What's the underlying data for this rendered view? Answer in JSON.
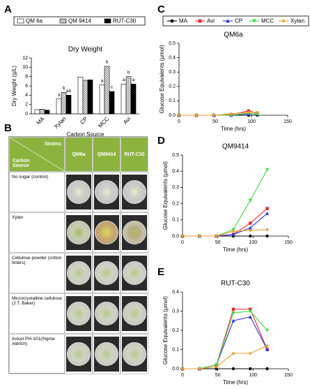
{
  "chart_data": [
    {
      "type": "bar",
      "panel": "A",
      "title": "Dry Weight",
      "xlabel": "Carbon Source",
      "ylabel": "Dry Weight (g/L)",
      "categories": [
        "MA",
        "Xylan",
        "CP",
        "MCC",
        "Avi"
      ],
      "series": [
        {
          "name": "QM 6a",
          "color": "#ffffff",
          "values": [
            0.9,
            3.2,
            7.9,
            6.2,
            6.4
          ],
          "letters": [
            null,
            "a",
            null,
            "a",
            "a"
          ]
        },
        {
          "name": "QM 9414",
          "color": "#888888",
          "pattern": "hatch",
          "values": [
            1.0,
            4.6,
            7.2,
            10.2,
            8.0
          ],
          "letters": [
            null,
            "b",
            null,
            "b",
            "b"
          ]
        },
        {
          "name": "RUT-C30",
          "color": "#000000",
          "values": [
            0.8,
            4.0,
            7.3,
            4.8,
            6.4
          ],
          "letters": [
            null,
            "ab",
            null,
            "c",
            "a"
          ]
        }
      ],
      "ylim": [
        0,
        12
      ],
      "yticks": [
        0,
        2,
        4,
        6,
        8,
        10,
        12
      ]
    },
    {
      "type": "line",
      "panel": "C",
      "title": "QM6a",
      "xlabel": "Time (hrs)",
      "ylabel": "Glucose Equivalents (µmol)",
      "x": [
        0,
        24,
        48,
        72,
        96,
        108
      ],
      "series": [
        {
          "name": "MA",
          "color": "#000000",
          "marker": "circle",
          "values": [
            0,
            0,
            0,
            0,
            0,
            0
          ]
        },
        {
          "name": "Avi",
          "color": "#e8262a",
          "marker": "square",
          "values": [
            0,
            0,
            0,
            0.005,
            0.03,
            0.015
          ]
        },
        {
          "name": "CP",
          "color": "#2a35d6",
          "marker": "triangle-up",
          "values": [
            0,
            0,
            0,
            0,
            0.01,
            0.01
          ]
        },
        {
          "name": "MCC",
          "color": "#3fd93a",
          "marker": "triangle-down",
          "values": [
            0,
            0,
            0,
            0,
            0.015,
            0.005
          ]
        },
        {
          "name": "Xylan",
          "color": "#f39a2c",
          "marker": "diamond",
          "values": [
            0,
            0,
            0,
            0.01,
            0.02,
            0.02
          ]
        }
      ],
      "xlim": [
        0,
        150
      ],
      "xticks": [
        0,
        50,
        100,
        150
      ],
      "ylim": [
        0,
        0.5
      ],
      "yticks": [
        {
          "value": 0,
          "label": "0.0"
        },
        0.1,
        0.2,
        0.3,
        0.4,
        0.5
      ]
    },
    {
      "type": "line",
      "panel": "D",
      "title": "QM9414",
      "xlabel": "Time (hrs)",
      "ylabel": "Glucose Equivalents (µmol)",
      "x": [
        0,
        24,
        48,
        72,
        96,
        120
      ],
      "series": [
        {
          "name": "MA",
          "color": "#000000",
          "marker": "circle",
          "values": [
            0,
            0,
            0,
            0,
            0,
            0
          ]
        },
        {
          "name": "Avi",
          "color": "#e8262a",
          "marker": "square",
          "values": [
            0,
            0,
            0,
            0.01,
            0.08,
            0.17
          ]
        },
        {
          "name": "CP",
          "color": "#2a35d6",
          "marker": "triangle-up",
          "values": [
            0,
            0,
            0,
            0.01,
            0.05,
            0.14
          ]
        },
        {
          "name": "MCC",
          "color": "#3fd93a",
          "marker": "triangle-down",
          "values": [
            0,
            0,
            0,
            0.04,
            0.22,
            0.41
          ]
        },
        {
          "name": "Xylan",
          "color": "#f39a2c",
          "marker": "diamond",
          "values": [
            0,
            0,
            0,
            0.03,
            0.035,
            0.04
          ]
        }
      ],
      "xlim": [
        0,
        150
      ],
      "xticks": [
        0,
        50,
        100,
        150
      ],
      "ylim": [
        0,
        0.5
      ],
      "yticks": [
        {
          "value": 0,
          "label": "0.0"
        },
        0.1,
        0.2,
        0.3,
        0.4,
        0.5
      ]
    },
    {
      "type": "line",
      "panel": "E",
      "title": "RUT-C30",
      "xlabel": "Time (hrs)",
      "ylabel": "Glucose Equivalents (µmol)",
      "x": [
        0,
        24,
        48,
        72,
        96,
        120
      ],
      "series": [
        {
          "name": "MA",
          "color": "#000000",
          "marker": "circle",
          "values": [
            0,
            0,
            0,
            0,
            0,
            0
          ]
        },
        {
          "name": "Avi",
          "color": "#e8262a",
          "marker": "square",
          "values": [
            0,
            0,
            0.02,
            0.31,
            0.31,
            0.1
          ]
        },
        {
          "name": "CP",
          "color": "#2a35d6",
          "marker": "triangle-up",
          "values": [
            0,
            0,
            0.02,
            0.25,
            0.27,
            0.1
          ]
        },
        {
          "name": "MCC",
          "color": "#3fd93a",
          "marker": "triangle-down",
          "values": [
            0,
            0,
            0.02,
            0.29,
            0.3,
            0.2
          ]
        },
        {
          "name": "Xylan",
          "color": "#f39a2c",
          "marker": "diamond",
          "values": [
            0,
            0,
            0.01,
            0.08,
            0.08,
            0.12
          ]
        }
      ],
      "xlim": [
        0,
        150
      ],
      "xticks": [
        0,
        50,
        100,
        150
      ],
      "ylim": [
        0,
        0.4
      ],
      "yticks": [
        {
          "value": 0,
          "label": "0.0"
        },
        0.1,
        0.2,
        0.3,
        0.4
      ]
    }
  ],
  "plate_table": {
    "panel": "B",
    "corner_top": "Strains",
    "corner_bottom": "Carbon Source",
    "columns": [
      "QM6a",
      "QM9414",
      "RUT-C30"
    ],
    "rows": [
      "No sugar (control)",
      "Xylan",
      "Cellulose powder (cotton linters)",
      "Microcrystalline cellulose (J.T. Baker)",
      "Avicel PH-101(Sigma Aldrich)"
    ]
  }
}
